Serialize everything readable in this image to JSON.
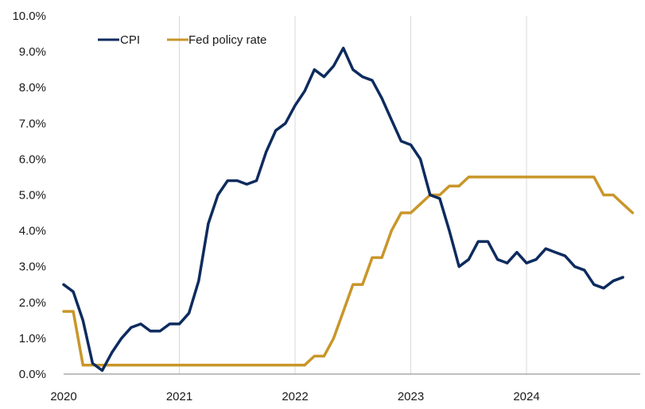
{
  "chart_data": {
    "type": "line",
    "title": "",
    "xlabel": "",
    "ylabel": "",
    "xlim": [
      2020,
      2024.917
    ],
    "ylim": [
      0,
      10
    ],
    "y_tick_labels": [
      "0.0%",
      "1.0%",
      "2.0%",
      "3.0%",
      "4.0%",
      "5.0%",
      "6.0%",
      "7.0%",
      "8.0%",
      "9.0%",
      "10.0%"
    ],
    "x_tick_labels": [
      "2020",
      "2021",
      "2022",
      "2023",
      "2024"
    ],
    "x_tick_values": [
      2020,
      2021,
      2022,
      2023,
      2024
    ],
    "grid": "vertical",
    "legend_position": "top-left",
    "series": [
      {
        "name": "CPI",
        "color": "#0d2b5e",
        "x": [
          2020.0,
          2020.083,
          2020.167,
          2020.25,
          2020.333,
          2020.417,
          2020.5,
          2020.583,
          2020.667,
          2020.75,
          2020.833,
          2020.917,
          2021.0,
          2021.083,
          2021.167,
          2021.25,
          2021.333,
          2021.417,
          2021.5,
          2021.583,
          2021.667,
          2021.75,
          2021.833,
          2021.917,
          2022.0,
          2022.083,
          2022.167,
          2022.25,
          2022.333,
          2022.417,
          2022.5,
          2022.583,
          2022.667,
          2022.75,
          2022.833,
          2022.917,
          2023.0,
          2023.083,
          2023.167,
          2023.25,
          2023.333,
          2023.417,
          2023.5,
          2023.583,
          2023.667,
          2023.75,
          2023.833,
          2023.917,
          2024.0,
          2024.083,
          2024.167,
          2024.25,
          2024.333,
          2024.417,
          2024.5,
          2024.583,
          2024.667,
          2024.75,
          2024.833
        ],
        "values": [
          2.5,
          2.3,
          1.5,
          0.3,
          0.1,
          0.6,
          1.0,
          1.3,
          1.4,
          1.2,
          1.2,
          1.4,
          1.4,
          1.7,
          2.6,
          4.2,
          5.0,
          5.4,
          5.4,
          5.3,
          5.4,
          6.2,
          6.8,
          7.0,
          7.5,
          7.9,
          8.5,
          8.3,
          8.6,
          9.1,
          8.5,
          8.3,
          8.2,
          7.7,
          7.1,
          6.5,
          6.4,
          6.0,
          5.0,
          4.9,
          4.0,
          3.0,
          3.2,
          3.7,
          3.7,
          3.2,
          3.1,
          3.4,
          3.1,
          3.2,
          3.5,
          3.4,
          3.3,
          3.0,
          2.9,
          2.5,
          2.4,
          2.6,
          2.7
        ]
      },
      {
        "name": "Fed policy rate",
        "color": "#c9962a",
        "x": [
          2020.0,
          2020.083,
          2020.167,
          2020.25,
          2020.333,
          2020.417,
          2020.5,
          2020.583,
          2020.667,
          2020.75,
          2020.833,
          2020.917,
          2021.0,
          2021.083,
          2021.167,
          2021.25,
          2021.333,
          2021.417,
          2021.5,
          2021.583,
          2021.667,
          2021.75,
          2021.833,
          2021.917,
          2022.0,
          2022.083,
          2022.167,
          2022.25,
          2022.333,
          2022.417,
          2022.5,
          2022.583,
          2022.667,
          2022.75,
          2022.833,
          2022.917,
          2023.0,
          2023.083,
          2023.167,
          2023.25,
          2023.333,
          2023.417,
          2023.5,
          2023.583,
          2023.667,
          2023.75,
          2023.833,
          2023.917,
          2024.0,
          2024.083,
          2024.167,
          2024.25,
          2024.333,
          2024.417,
          2024.5,
          2024.583,
          2024.667,
          2024.75,
          2024.833,
          2024.917
        ],
        "values": [
          1.75,
          1.75,
          0.25,
          0.25,
          0.25,
          0.25,
          0.25,
          0.25,
          0.25,
          0.25,
          0.25,
          0.25,
          0.25,
          0.25,
          0.25,
          0.25,
          0.25,
          0.25,
          0.25,
          0.25,
          0.25,
          0.25,
          0.25,
          0.25,
          0.25,
          0.25,
          0.5,
          0.5,
          1.0,
          1.75,
          2.5,
          2.5,
          3.25,
          3.25,
          4.0,
          4.5,
          4.5,
          4.75,
          5.0,
          5.0,
          5.25,
          5.25,
          5.5,
          5.5,
          5.5,
          5.5,
          5.5,
          5.5,
          5.5,
          5.5,
          5.5,
          5.5,
          5.5,
          5.5,
          5.5,
          5.5,
          5.0,
          5.0,
          4.75,
          4.5
        ]
      }
    ]
  }
}
